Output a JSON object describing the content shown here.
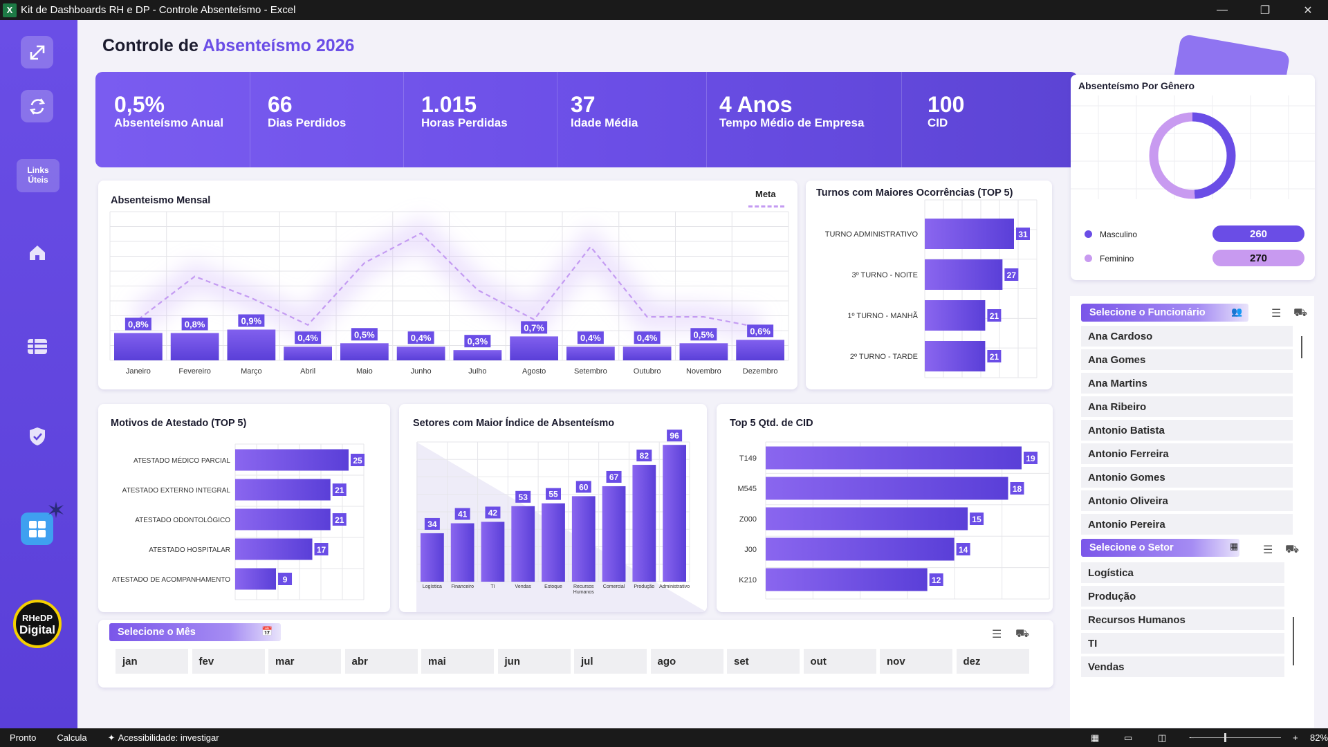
{
  "window": {
    "title": "Kit de Dashboards RH e DP - Controle Absenteísmo - Excel"
  },
  "statusbar": {
    "ready": "Pronto",
    "calc": "Calcula",
    "access": "Acessibilidade: investigar",
    "zoom": "82%"
  },
  "sidebar": {
    "links_line1": "Links",
    "links_line2": "Úteis",
    "logo_line1": "RHeDP",
    "logo_line2": "Digital"
  },
  "header": {
    "title_prefix": "Controle de ",
    "title_accent": "Absenteísmo 2026"
  },
  "kpis": [
    {
      "value": "0,5%",
      "label": "Absenteísmo Anual"
    },
    {
      "value": "66",
      "label": "Dias Perdidos"
    },
    {
      "value": "1.015",
      "label": "Horas Perdidas"
    },
    {
      "value": "37",
      "label": "Idade Média"
    },
    {
      "value": "4 Anos",
      "label": "Tempo Médio de Empresa"
    },
    {
      "value": "100",
      "label": "CID"
    }
  ],
  "colors": {
    "accent": "#6a4de6",
    "bar": "#6a4de6",
    "line": "#c49bf2",
    "female": "#c89af0",
    "male": "#6a4de6"
  },
  "chart_data": [
    {
      "id": "monthly",
      "type": "bar",
      "title": "Absenteismo Mensal",
      "legend": "Meta",
      "categories": [
        "Janeiro",
        "Fevereiro",
        "Março",
        "Abril",
        "Maio",
        "Junho",
        "Julho",
        "Agosto",
        "Setembro",
        "Outubro",
        "Novembro",
        "Dezembro"
      ],
      "series": [
        {
          "name": "",
          "values": [
            0.8,
            0.8,
            0.9,
            0.4,
            0.5,
            0.4,
            0.3,
            0.7,
            0.4,
            0.4,
            0.5,
            0.6
          ],
          "labels": [
            "0,8%",
            "0,8%",
            "0,9%",
            "0,4%",
            "0,5%",
            "0,4%",
            "0,3%",
            "0,7%",
            "0,4%",
            "0,4%",
            "0,5%",
            "0,6%"
          ]
        },
        {
          "name": "Meta",
          "type": "line",
          "values": [
            1.0,
            2.6,
            1.8,
            0.8,
            3.1,
            4.2,
            2.1,
            1.0,
            3.7,
            1.1,
            1.1,
            0.7
          ]
        }
      ]
    },
    {
      "id": "turnos",
      "type": "bar",
      "orientation": "horizontal",
      "title": "Turnos com Maiores Ocorrências (TOP 5)",
      "categories": [
        "TURNO ADMINISTRATIVO",
        "3º TURNO - NOITE",
        "1º TURNO - MANHÃ",
        "2º TURNO - TARDE"
      ],
      "values": [
        31,
        27,
        21,
        21
      ]
    },
    {
      "id": "motivos",
      "type": "bar",
      "orientation": "horizontal",
      "title": "Motivos de Atestado (TOP 5)",
      "categories": [
        "ATESTADO MÉDICO PARCIAL",
        "ATESTADO EXTERNO INTEGRAL",
        "ATESTADO ODONTOLÓGICO",
        "ATESTADO HOSPITALAR",
        "ATESTADO DE ACOMPANHAMENTO"
      ],
      "values": [
        25,
        21,
        21,
        17,
        9
      ]
    },
    {
      "id": "setores",
      "type": "bar",
      "title": "Setores com Maior Índice de Absenteísmo",
      "categories": [
        "Logística",
        "Financeiro",
        "TI",
        "Vendas",
        "Estoque",
        "Recursos Humanos",
        "Comercial",
        "Produção",
        "Administrativo"
      ],
      "values": [
        34,
        41,
        42,
        53,
        55,
        60,
        67,
        82,
        96
      ]
    },
    {
      "id": "cid",
      "type": "bar",
      "orientation": "horizontal",
      "title": "Top 5 Qtd. de CID",
      "categories": [
        "T149",
        "M545",
        "Z000",
        "J00",
        "K210"
      ],
      "values": [
        19,
        18,
        15,
        14,
        12
      ]
    },
    {
      "id": "genero",
      "type": "pie",
      "title": "Absenteísmo Por Gênero",
      "categories": [
        "Masculino",
        "Feminino"
      ],
      "values": [
        260,
        270
      ]
    }
  ],
  "slicers": {
    "funcionario": {
      "title": "Selecione o Funcionário",
      "items": [
        "Ana Cardoso",
        "Ana Gomes",
        "Ana Martins",
        "Ana Ribeiro",
        "Antonio Batista",
        "Antonio Ferreira",
        "Antonio Gomes",
        "Antonio Oliveira",
        "Antonio Pereira"
      ]
    },
    "setor": {
      "title": "Selecione o Setor",
      "items": [
        "Logística",
        "Produção",
        "Recursos Humanos",
        "TI",
        "Vendas"
      ]
    },
    "mes": {
      "title": "Selecione o Mês",
      "items": [
        "jan",
        "fev",
        "mar",
        "abr",
        "mai",
        "jun",
        "jul",
        "ago",
        "set",
        "out",
        "nov",
        "dez"
      ]
    }
  }
}
